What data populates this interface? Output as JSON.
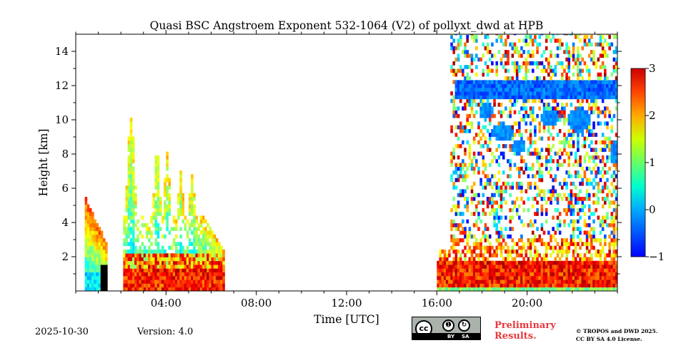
{
  "chart_data": {
    "type": "heatmap",
    "title": "Quasi BSC Angstroem Exponent 532-1064 (V2) of pollyxt_dwd at HPB",
    "xlabel": "Time [UTC]",
    "ylabel": "Height [km]",
    "xlim_hours": [
      0,
      24
    ],
    "ylim_km": [
      0,
      15
    ],
    "x_ticks": [
      {
        "value": 4,
        "label": "04:00"
      },
      {
        "value": 8,
        "label": "08:00"
      },
      {
        "value": 12,
        "label": "12:00"
      },
      {
        "value": 16,
        "label": "16:00"
      },
      {
        "value": 20,
        "label": "20:00"
      }
    ],
    "y_ticks": [
      {
        "value": 2,
        "label": "2"
      },
      {
        "value": 4,
        "label": "4"
      },
      {
        "value": 6,
        "label": "6"
      },
      {
        "value": 8,
        "label": "8"
      },
      {
        "value": 10,
        "label": "10"
      },
      {
        "value": 12,
        "label": "12"
      },
      {
        "value": 14,
        "label": "14"
      }
    ],
    "colorbar": {
      "range": [
        -1,
        3
      ],
      "colormap": "jet",
      "ticks": [
        {
          "value": 3,
          "label": "3"
        },
        {
          "value": 2,
          "label": "2"
        },
        {
          "value": 1,
          "label": "1"
        },
        {
          "value": 0,
          "label": "0"
        },
        {
          "value": -1,
          "label": "−1"
        }
      ]
    },
    "observed_regions": [
      {
        "name": "early-profile",
        "t_start": 0.45,
        "t_end": 1.45,
        "h_top_km": 5.4,
        "note": "low-level mixed values, black (no-data flag) near surface 1.1-1.5 h"
      },
      {
        "name": "morning-plumes",
        "t_start": 2.1,
        "t_end": 6.6,
        "h_top_km": 10.3,
        "note": "high boundary-layer values ~2.5 below 2 km, plumes ~0.3-1.2 up to ~10 km"
      },
      {
        "name": "afternoon-evening",
        "t_start": 16.0,
        "t_end": 24.0,
        "h_top_km": 15.0,
        "note": "boundary layer ~2.5 below 1.5 km, noisy free troposphere, cloud layer ~0 near 11.5-12 km"
      }
    ]
  },
  "footer": {
    "date": "2025-10-30",
    "version": "Version: 4.0",
    "cc_label": "cc",
    "by_label": "BY",
    "sa_label": "SA",
    "preliminary_line1": "Preliminary",
    "preliminary_line2": "Results.",
    "license_line1": "© TROPOS and DWD 2025.",
    "license_line2": "CC BY SA 4.0 License."
  },
  "colors": {
    "black_flag": "#000000",
    "preliminary": "#e8383d",
    "badge_bg": "#aab2ab"
  }
}
